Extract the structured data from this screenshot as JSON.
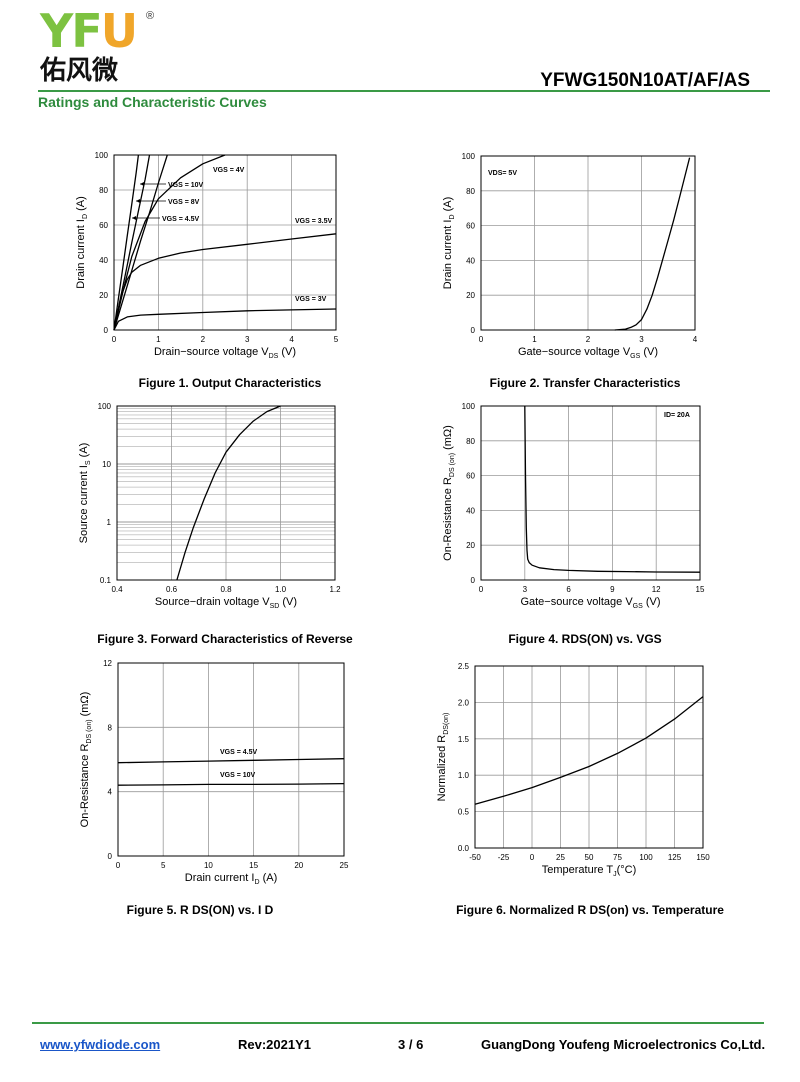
{
  "header": {
    "logo_letters": [
      "YF",
      "U"
    ],
    "logo_registered": "®",
    "logo_chinese": "佑风微",
    "part_number": "YFWG150N10AT/AF/AS",
    "section_title": "Ratings and Characteristic Curves"
  },
  "chart_data": [
    {
      "type": "line",
      "caption": "Figure 1. Output Characteristics",
      "xlabel": "Drain−source voltage V",
      "xlabel_sub": "DS",
      "xlabel_unit": " (V)",
      "ylabel": "Drain current I",
      "ylabel_sub": "D",
      "ylabel_unit": " (A)",
      "xlim": [
        0,
        5
      ],
      "ylim": [
        0,
        100
      ],
      "xticks": [
        "0",
        "1",
        "2",
        "3",
        "4",
        "5"
      ],
      "yticks": [
        "0",
        "20",
        "40",
        "60",
        "80",
        "100"
      ],
      "grid": true,
      "series": [
        {
          "name": "VGS = 10V",
          "x": [
            0,
            0.1,
            0.2,
            0.3,
            0.4,
            0.5,
            0.55
          ],
          "y": [
            0,
            18,
            36,
            54,
            72,
            90,
            100
          ]
        },
        {
          "name": "VGS = 8V",
          "x": [
            0,
            0.12,
            0.25,
            0.4,
            0.55,
            0.7,
            0.8
          ],
          "y": [
            0,
            15,
            31,
            50,
            68,
            86,
            100
          ]
        },
        {
          "name": "VGS = 4.5V",
          "x": [
            0,
            0.2,
            0.4,
            0.6,
            0.8,
            1.0,
            1.2
          ],
          "y": [
            0,
            17,
            34,
            51,
            67,
            84,
            100
          ]
        },
        {
          "name": "VGS = 4V",
          "x": [
            0,
            0.2,
            0.4,
            0.7,
            1.0,
            1.5,
            2.0,
            2.5
          ],
          "y": [
            0,
            22,
            42,
            62,
            75,
            87,
            95,
            100
          ]
        },
        {
          "name": "VGS = 3.5V",
          "x": [
            0,
            0.1,
            0.2,
            0.3,
            0.4,
            0.6,
            0.8,
            1.0,
            1.5,
            2.0,
            3.0,
            4.0,
            5.0
          ],
          "y": [
            0,
            12,
            22,
            29,
            33,
            37,
            39,
            41,
            44,
            46,
            49,
            52,
            55
          ]
        },
        {
          "name": "VGS = 3V",
          "x": [
            0,
            0.1,
            0.3,
            0.6,
            1.0,
            2.0,
            3.0,
            4.0,
            5.0
          ],
          "y": [
            0,
            5,
            7.5,
            8.5,
            9,
            10,
            11,
            11.5,
            12
          ]
        }
      ],
      "labels": [
        "VGS = 4V",
        "VGS = 10V",
        "VGS = 8V",
        "VGS = 4.5V",
        "VGS = 3.5V",
        "VGS = 3V"
      ]
    },
    {
      "type": "line",
      "caption": "Figure 2. Transfer Characteristics",
      "xlabel": "Gate−source voltage V",
      "xlabel_sub": "GS",
      "xlabel_unit": " (V)",
      "ylabel": "Drain current I",
      "ylabel_sub": "D",
      "ylabel_unit": " (A)",
      "xlim": [
        0,
        4
      ],
      "ylim": [
        0,
        100
      ],
      "xticks": [
        "0",
        "1",
        "2",
        "3",
        "4"
      ],
      "yticks": [
        "0",
        "20",
        "40",
        "60",
        "80",
        "100"
      ],
      "grid": true,
      "series": [
        {
          "name": "VDS= 5V",
          "x": [
            2.5,
            2.7,
            2.8,
            2.9,
            3.0,
            3.1,
            3.2,
            3.3,
            3.4,
            3.5,
            3.6,
            3.7,
            3.8,
            3.9
          ],
          "y": [
            0,
            0.5,
            1.5,
            3,
            6,
            12,
            20,
            30,
            41,
            52,
            63,
            75,
            87,
            99
          ]
        }
      ],
      "labels": [
        "VDS= 5V"
      ]
    },
    {
      "type": "line",
      "caption": "Figure 3. Forward Characteristics of Reverse",
      "xlabel": "Source−drain voltage V",
      "xlabel_sub": "SD",
      "xlabel_unit": " (V)",
      "ylabel": "Source current I",
      "ylabel_sub": "S",
      "ylabel_unit": " (A)",
      "xlim": [
        0.4,
        1.2
      ],
      "ylim": [
        0.1,
        100
      ],
      "yscale": "log",
      "xticks": [
        "0.4",
        "0.6",
        "0.8",
        "1.0",
        "1.2"
      ],
      "yticks": [
        "0.1",
        "1",
        "10",
        "100"
      ],
      "grid": true,
      "series": [
        {
          "name": "IS",
          "x": [
            0.62,
            0.65,
            0.68,
            0.72,
            0.76,
            0.8,
            0.85,
            0.9,
            0.95,
            1.0
          ],
          "y": [
            0.1,
            0.3,
            0.8,
            2.5,
            7,
            16,
            32,
            55,
            80,
            100
          ]
        }
      ],
      "labels": []
    },
    {
      "type": "line",
      "caption": "Figure 4. RDS(ON) vs. VGS",
      "xlabel": "Gate−source voltage V",
      "xlabel_sub": "GS",
      "xlabel_unit": " (V)",
      "ylabel": "On-Resistance R",
      "ylabel_sub": "DS (on)",
      "ylabel_unit": " (mΩ)",
      "xlim": [
        0,
        15
      ],
      "ylim": [
        0,
        100
      ],
      "xticks": [
        "0",
        "3",
        "6",
        "9",
        "12",
        "15"
      ],
      "yticks": [
        "0",
        "20",
        "40",
        "60",
        "80",
        "100"
      ],
      "grid": true,
      "series": [
        {
          "name": "ID= 20A",
          "x": [
            3.0,
            3.05,
            3.1,
            3.15,
            3.2,
            3.3,
            3.5,
            4.0,
            5.0,
            6.0,
            8.0,
            10.0,
            12.0,
            15.0
          ],
          "y": [
            100,
            60,
            30,
            17,
            12,
            10,
            8.5,
            7,
            6,
            5.5,
            5,
            4.8,
            4.6,
            4.5
          ]
        }
      ],
      "labels": [
        "ID= 20A"
      ]
    },
    {
      "type": "line",
      "caption": "Figure 5. R DS(ON) vs. I D",
      "xlabel": "Drain current I",
      "xlabel_sub": "D",
      "xlabel_unit": " (A)",
      "ylabel": "On-Resistance R",
      "ylabel_sub": "DS (on)",
      "ylabel_unit": " (mΩ)",
      "xlim": [
        0,
        25
      ],
      "ylim": [
        0,
        12
      ],
      "xticks": [
        "0",
        "5",
        "10",
        "15",
        "20",
        "25"
      ],
      "yticks": [
        "0",
        "4",
        "8",
        "12"
      ],
      "grid": true,
      "series": [
        {
          "name": "VGS = 4.5V",
          "x": [
            0,
            5,
            10,
            15,
            20,
            25
          ],
          "y": [
            5.8,
            5.85,
            5.9,
            5.95,
            6.0,
            6.05
          ]
        },
        {
          "name": "VGS = 10V",
          "x": [
            0,
            5,
            10,
            15,
            20,
            25
          ],
          "y": [
            4.4,
            4.42,
            4.45,
            4.45,
            4.47,
            4.5
          ]
        }
      ],
      "labels": [
        "VGS = 4.5V",
        "VGS = 10V"
      ]
    },
    {
      "type": "line",
      "caption": "Figure 6. Normalized R DS(on) vs. Temperature",
      "xlabel": "Temperature T",
      "xlabel_sub": "J",
      "xlabel_unit": "(°C)",
      "ylabel": "Normalized R",
      "ylabel_sub": "DS(on)",
      "ylabel_unit": "",
      "xlim": [
        -50,
        150
      ],
      "ylim": [
        0.0,
        2.5
      ],
      "xticks": [
        "-50",
        "-25",
        "0",
        "25",
        "50",
        "75",
        "100",
        "125",
        "150"
      ],
      "yticks": [
        "0.0",
        "0.5",
        "1.0",
        "1.5",
        "2.0",
        "2.5"
      ],
      "grid": true,
      "series": [
        {
          "name": "RDS(on)",
          "x": [
            -50,
            -25,
            0,
            25,
            50,
            75,
            100,
            125,
            150
          ],
          "y": [
            0.6,
            0.71,
            0.83,
            0.97,
            1.12,
            1.3,
            1.51,
            1.77,
            2.08
          ]
        }
      ],
      "labels": []
    }
  ],
  "footer": {
    "url": "www.yfwdiode.com",
    "revision": "Rev:2021Y1",
    "page": "3 / 6",
    "company": "GuangDong Youfeng Microelectronics Co,Ltd."
  }
}
